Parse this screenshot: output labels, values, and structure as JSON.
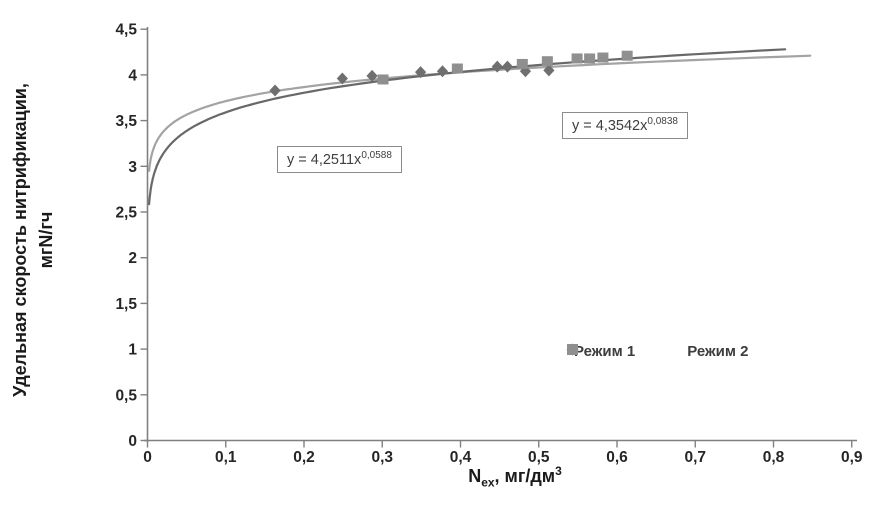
{
  "chart_data": {
    "type": "scatter",
    "title": "",
    "xlabel": "Nex, мг/дм3",
    "xlabel_parts": {
      "prefix": "N",
      "sub": "ex",
      "mid": ", мг/дм",
      "sup": "3"
    },
    "ylabel": "Удельная скорость нитрификации, мгN/гч",
    "ylabel_line1": "Удельная скорость нитрификации,",
    "ylabel_line2": "мгN/гч",
    "xlim": [
      0,
      0.9
    ],
    "ylim": [
      0,
      4.5
    ],
    "grid": false,
    "legend_position": "inside-bottom-right",
    "axis_color": "#808080",
    "tick_label_color": "#262626",
    "x_ticks": [
      {
        "v": 0.0,
        "label": "0"
      },
      {
        "v": 0.1,
        "label": "0,1"
      },
      {
        "v": 0.2,
        "label": "0,2"
      },
      {
        "v": 0.3,
        "label": "0,3"
      },
      {
        "v": 0.4,
        "label": "0,4"
      },
      {
        "v": 0.5,
        "label": "0,5"
      },
      {
        "v": 0.6,
        "label": "0,6"
      },
      {
        "v": 0.7,
        "label": "0,7"
      },
      {
        "v": 0.8,
        "label": "0,8"
      },
      {
        "v": 0.9,
        "label": "0,9"
      }
    ],
    "y_ticks": [
      {
        "v": 0.0,
        "label": "0"
      },
      {
        "v": 0.5,
        "label": "0,5"
      },
      {
        "v": 1.0,
        "label": "1"
      },
      {
        "v": 1.5,
        "label": "1,5"
      },
      {
        "v": 2.0,
        "label": "2"
      },
      {
        "v": 2.5,
        "label": "2,5"
      },
      {
        "v": 3.0,
        "label": "3"
      },
      {
        "v": 3.5,
        "label": "3,5"
      },
      {
        "v": 4.0,
        "label": "4"
      },
      {
        "v": 4.5,
        "label": "4,5"
      }
    ],
    "series": [
      {
        "name": "Режим 1",
        "marker": "diamond",
        "color": "#6f6f6f",
        "points": [
          [
            0.163,
            3.83
          ],
          [
            0.249,
            3.96
          ],
          [
            0.287,
            3.99
          ],
          [
            0.349,
            4.03
          ],
          [
            0.377,
            4.04
          ],
          [
            0.447,
            4.09
          ],
          [
            0.46,
            4.09
          ],
          [
            0.483,
            4.04
          ],
          [
            0.513,
            4.05
          ]
        ]
      },
      {
        "name": "Режим 2",
        "marker": "square",
        "color": "#8f8f8f",
        "points": [
          [
            0.301,
            3.95
          ],
          [
            0.396,
            4.07
          ],
          [
            0.479,
            4.12
          ],
          [
            0.511,
            4.15
          ],
          [
            0.549,
            4.18
          ],
          [
            0.565,
            4.18
          ],
          [
            0.582,
            4.19
          ],
          [
            0.613,
            4.21
          ]
        ]
      }
    ],
    "trendlines": [
      {
        "series": "Режим 1",
        "type": "power",
        "a": 4.2511,
        "b": 0.0588,
        "equation": "y = 4,2511x^0,0588",
        "equation_base": "y = 4,2511x",
        "equation_exponent": "0,0588",
        "color": "#a3a3a3",
        "x_range": [
          0.002,
          0.847
        ]
      },
      {
        "series": "Режим 2",
        "type": "power",
        "a": 4.3542,
        "b": 0.0838,
        "equation": "y = 4,3542x^0,0838",
        "equation_base": "y = 4,3542x",
        "equation_exponent": "0,0838",
        "color": "#686868",
        "x_range": [
          0.002,
          0.815
        ]
      }
    ]
  }
}
